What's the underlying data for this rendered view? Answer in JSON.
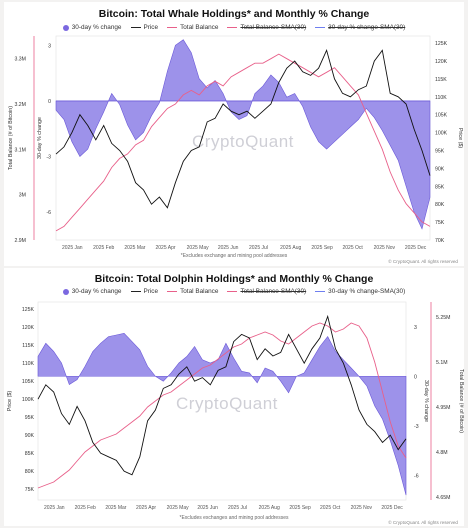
{
  "chart_data": [
    {
      "type": "area",
      "title": "Bitcoin: Total Whale Holdings* and Monthly % Change",
      "legend": [
        "30-day % change",
        "Price",
        "Total Balance",
        "Total Balance-SMA(30)",
        "30-day % change-SMA(30)"
      ],
      "left_axis_label": "Total Balance (# of Bitcoin)",
      "left_axis_ticks": [
        "3.3M",
        "3.2M",
        "3.1M",
        "3M",
        "2.9M"
      ],
      "pct_axis_label": "30-day % change",
      "pct_axis_ticks": [
        "3",
        "0",
        "-3",
        "-6"
      ],
      "right_axis_label": "Price ($)",
      "right_axis_ticks": [
        "125K",
        "120K",
        "115K",
        "110K",
        "105K",
        "100K",
        "95K",
        "90K",
        "85K",
        "80K",
        "75K",
        "70K"
      ],
      "x_ticks": [
        "2025 Jan",
        "2025 Feb",
        "2025 Mar",
        "2025 Apr",
        "2025 May",
        "2025 Jun",
        "2025 Jul",
        "2025 Aug",
        "2025 Sep",
        "2025 Oct",
        "2025 Nov",
        "2025 Dec"
      ],
      "footnote": "*Excludes exchange and mining pool addresses",
      "credit": "© CryptoQuant. All rights reserved",
      "watermark": "CryptoQuant",
      "pct_ylim": [
        -7.5,
        3.5
      ],
      "price_ylim": [
        70,
        127
      ],
      "balance_ylim": [
        2.9,
        3.35
      ],
      "pct_change": [
        -0.5,
        -1.0,
        -2.2,
        -3.0,
        -2.6,
        -1.5,
        -0.6,
        0.4,
        -0.2,
        -1.3,
        -2.1,
        -1.7,
        -0.8,
        -0.1,
        1.6,
        3.0,
        3.3,
        2.6,
        1.2,
        0.7,
        1.1,
        0.4,
        -0.6,
        -1.0,
        -0.8,
        0.4,
        0.8,
        1.4,
        1.0,
        0.2,
        0.4,
        -0.3,
        -1.4,
        -2.2,
        -2.6,
        -2.2,
        -1.8,
        -1.4,
        -1.0,
        -0.4,
        -0.9,
        -1.6,
        -2.4,
        -3.2,
        -4.6,
        -6.0,
        -6.9,
        -5.2
      ],
      "price": [
        94,
        96,
        100,
        105,
        102,
        98,
        102,
        97,
        95,
        92,
        86,
        84,
        80,
        82,
        79,
        86,
        92,
        95,
        96,
        103,
        104,
        108,
        106,
        105,
        106,
        104,
        106,
        108,
        114,
        118,
        120,
        117,
        116,
        118,
        123,
        115,
        111,
        110,
        112,
        113,
        120,
        123,
        111,
        110,
        108,
        101,
        95,
        88
      ],
      "balance": [
        2.92,
        2.93,
        2.95,
        2.97,
        2.99,
        3.01,
        3.03,
        3.06,
        3.08,
        3.09,
        3.11,
        3.12,
        3.15,
        3.17,
        3.19,
        3.2,
        3.22,
        3.23,
        3.22,
        3.24,
        3.25,
        3.24,
        3.26,
        3.27,
        3.28,
        3.29,
        3.29,
        3.3,
        3.31,
        3.3,
        3.29,
        3.28,
        3.27,
        3.26,
        3.27,
        3.28,
        3.26,
        3.24,
        3.22,
        3.18,
        3.14,
        3.1,
        3.05,
        3.01,
        2.98,
        2.96,
        2.94,
        2.93
      ]
    },
    {
      "type": "area",
      "title": "Bitcoin: Total Dolphin Holdings* and Monthly % Change",
      "legend": [
        "30-day % change",
        "Price",
        "Total Balance",
        "Total Balance-SMA(30)",
        "30-day % change-SMA(30)"
      ],
      "left_axis_label": "Price ($)",
      "left_axis_ticks": [
        "125K",
        "120K",
        "115K",
        "110K",
        "105K",
        "100K",
        "95K",
        "90K",
        "85K",
        "80K",
        "75K"
      ],
      "pct_axis_label": "30-day % change",
      "pct_axis_ticks": [
        "3",
        "0",
        "-3",
        "-6"
      ],
      "right_axis_label": "Total Balance (# of Bitcoin)",
      "right_axis_ticks": [
        "5.25M",
        "5.1M",
        "4.95M",
        "4.8M",
        "4.65M"
      ],
      "x_ticks": [
        "2025 Jan",
        "2025 Feb",
        "2025 Mar",
        "2025 Apr",
        "2025 May",
        "2025 Jun",
        "2025 Jul",
        "2025 Aug",
        "2025 Sep",
        "2025 Oct",
        "2025 Nov",
        "2025 Dec"
      ],
      "footnote": "*Excludes exchanges and mining pool addresses",
      "credit": "© CryptoQuant. All rights reserved",
      "watermark": "CryptoQuant",
      "pct_ylim": [
        -7.5,
        4.5
      ],
      "price_ylim": [
        72,
        127
      ],
      "balance_ylim": [
        4.64,
        5.3
      ],
      "pct_change": [
        1.2,
        2.0,
        1.5,
        0.8,
        -0.5,
        -0.2,
        0.6,
        1.5,
        2.0,
        2.4,
        2.5,
        2.6,
        2.1,
        1.6,
        0.6,
        0.0,
        -0.3,
        0.2,
        0.8,
        1.2,
        1.8,
        1.0,
        0.8,
        1.0,
        2.0,
        1.1,
        0.3,
        0.2,
        -0.4,
        0.5,
        0.3,
        -0.3,
        -1.0,
        0.0,
        0.2,
        1.0,
        1.8,
        2.4,
        1.5,
        1.0,
        0.5,
        0.0,
        -0.6,
        -1.8,
        -2.6,
        -3.9,
        -5.4,
        -7.2
      ],
      "price": [
        100,
        104,
        102,
        96,
        93,
        98,
        94,
        88,
        85,
        84,
        83,
        80,
        79,
        84,
        94,
        97,
        103,
        104,
        107,
        109,
        105,
        106,
        104,
        108,
        109,
        116,
        118,
        117,
        111,
        114,
        112,
        113,
        118,
        114,
        110,
        114,
        117,
        123,
        114,
        110,
        104,
        97,
        93,
        91,
        88,
        90,
        86,
        89
      ],
      "balance": [
        4.68,
        4.69,
        4.7,
        4.72,
        4.74,
        4.77,
        4.8,
        4.82,
        4.84,
        4.85,
        4.86,
        4.88,
        4.9,
        4.92,
        4.95,
        4.97,
        4.99,
        5.0,
        5.02,
        5.04,
        5.06,
        5.08,
        5.09,
        5.11,
        5.13,
        5.15,
        5.16,
        5.18,
        5.19,
        5.2,
        5.19,
        5.17,
        5.16,
        5.18,
        5.2,
        5.22,
        5.23,
        5.22,
        5.2,
        5.21,
        5.23,
        5.22,
        5.18,
        5.1,
        5.0,
        4.9,
        4.82,
        4.78
      ]
    }
  ],
  "colors": {
    "area_fill": "#8c7fe6",
    "area_stroke": "#6a58d8",
    "price_line": "#111111",
    "balance_line": "#e8608a",
    "sma_line": "#7a86f0"
  }
}
